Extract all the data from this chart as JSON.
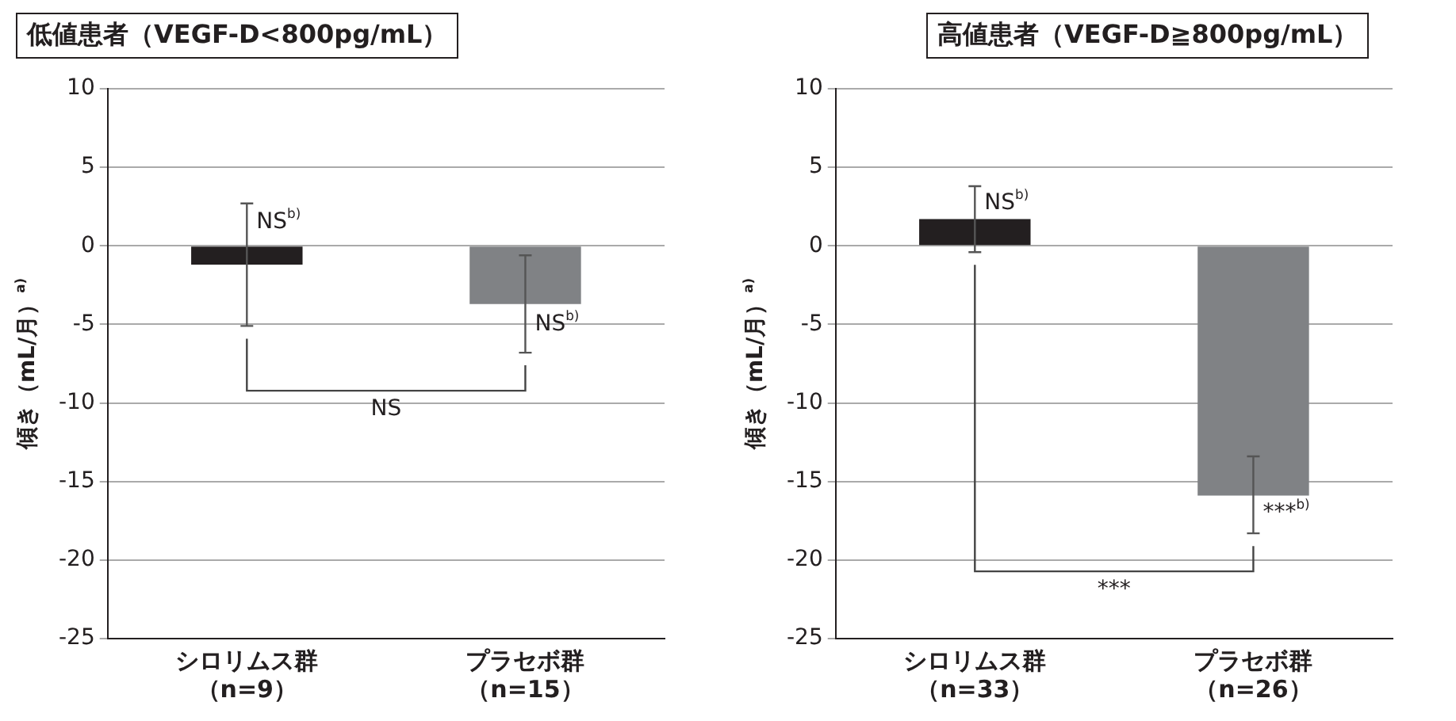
{
  "chart_data": [
    {
      "type": "bar",
      "title": "低値患者（VEGF-D<800pg/mL）",
      "ylabel": "傾き（mL/月）$^{a)}$",
      "categories": [
        "シロリムス群（n=9）",
        "プラセボ群（n=15）"
      ],
      "values": [
        -1.2,
        -3.7
      ],
      "colors": [
        "#231f20",
        "#808285"
      ],
      "errors": [
        [
          -5.1,
          2.7
        ],
        [
          -6.8,
          -0.6
        ]
      ],
      "ylim": [
        -25,
        10
      ],
      "yticks": [
        10,
        5,
        0,
        -5,
        -10,
        -15,
        -20,
        -25
      ],
      "grid": "y",
      "annotations": [
        {
          "text": "NS$^{b)}$",
          "x": "シロリムス群（n=9）",
          "y": 1.5
        },
        {
          "text": "NS$^{b)}$",
          "x": "プラセボ群（n=15）",
          "y": -5
        },
        "NS"
      ]
    },
    {
      "type": "bar",
      "title": "高値患者（VEGF-D≧800pg/mL）",
      "ylabel": "傾き（mL/月）$^{a)}$",
      "categories": [
        "シロリムス群（n=33）",
        "プラセボ群（n=26）"
      ],
      "values": [
        1.7,
        -15.9
      ],
      "colors": [
        "#231f20",
        "#808285"
      ],
      "errors": [
        [
          -0.4,
          3.8
        ],
        [
          -18.3,
          -13.4
        ]
      ],
      "ylim": [
        -25,
        10
      ],
      "yticks": [
        10,
        5,
        0,
        -5,
        -10,
        -15,
        -20,
        -25
      ],
      "grid": "y",
      "annotations": [
        {
          "text": "NS$^{b)}$",
          "x": "シロリムス群（n=33）",
          "y": 2.7
        },
        {
          "text": "***$^{b)}$",
          "x": "プラセボ群（n=26）",
          "y": -17
        },
        "***"
      ]
    }
  ]
}
